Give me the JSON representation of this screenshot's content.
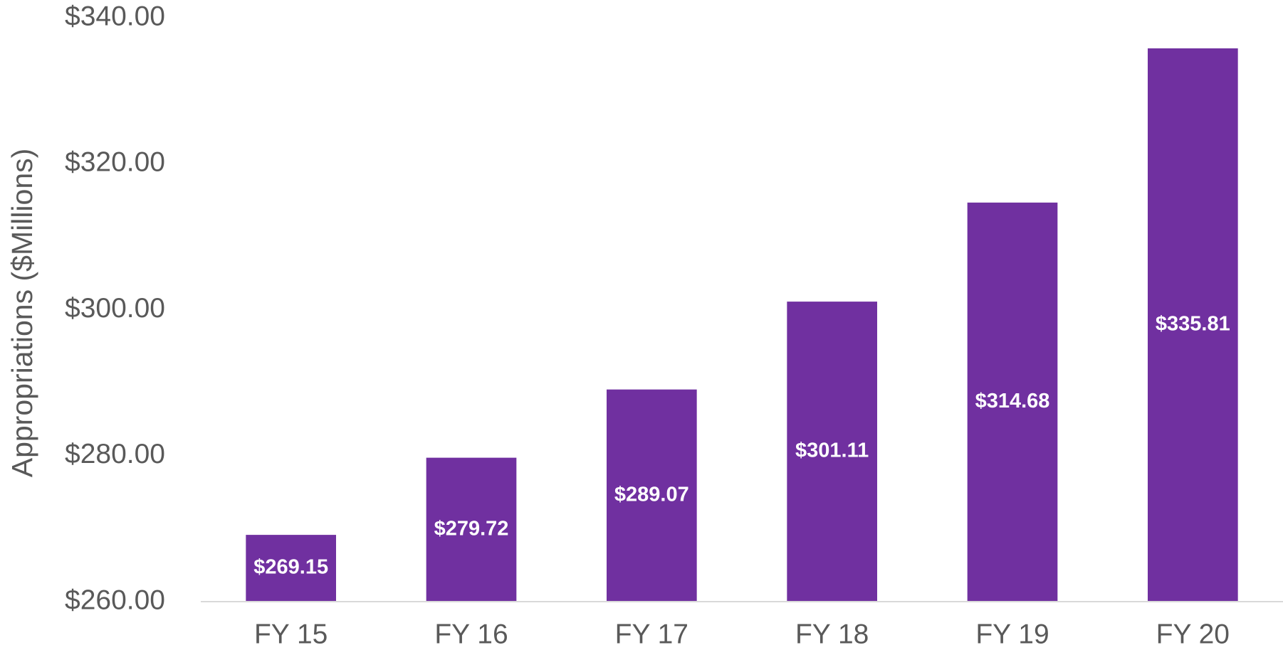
{
  "chart_data": {
    "type": "bar",
    "y_label": "Appropriations ($Millions)",
    "categories": [
      "FY 15",
      "FY 16",
      "FY 17",
      "FY 18",
      "FY 19",
      "FY 20"
    ],
    "values": [
      269.15,
      279.72,
      289.07,
      301.11,
      314.68,
      335.81
    ],
    "value_labels": [
      "$269.15",
      "$279.72",
      "$289.07",
      "$301.11",
      "$314.68",
      "$335.81"
    ],
    "color": "#7030a0",
    "ylim": [
      260,
      340
    ],
    "yticks": [
      {
        "value": 260,
        "label": "$260.00"
      },
      {
        "value": 280,
        "label": "$280.00"
      },
      {
        "value": 300,
        "label": "$300.00"
      },
      {
        "value": 320,
        "label": "$320.00"
      },
      {
        "value": 340,
        "label": "$340.00"
      }
    ],
    "grid": false
  }
}
